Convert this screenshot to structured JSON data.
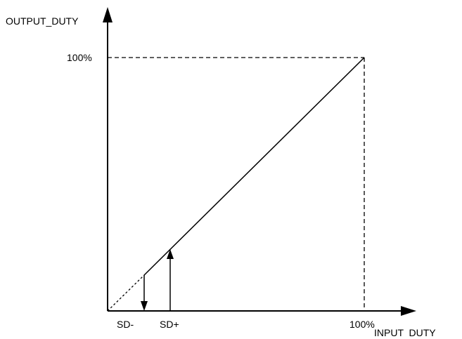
{
  "axes": {
    "y_label": "OUTPUT_DUTY",
    "x_label": "INPUT  DUTY"
  },
  "markers": {
    "y_max": "100%",
    "x_max": "100%",
    "sd_minus": "SD-",
    "sd_plus": "SD+"
  }
}
